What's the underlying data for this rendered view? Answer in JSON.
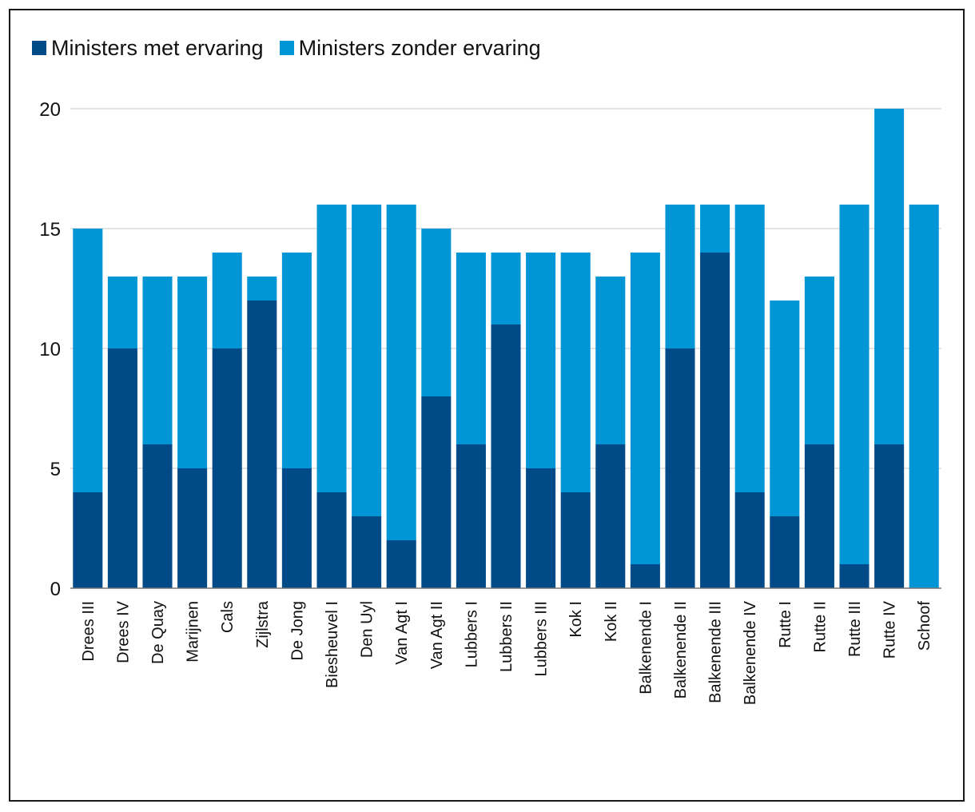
{
  "chart_data": {
    "type": "bar",
    "stacked": true,
    "title": "",
    "xlabel": "",
    "ylabel": "",
    "ylim": [
      0,
      20
    ],
    "yticks": [
      0,
      5,
      10,
      15,
      20
    ],
    "grid": true,
    "legend_position": "top-left",
    "categories": [
      "Drees III",
      "Drees IV",
      "De Quay",
      "Marijnen",
      "Cals",
      "Zijlstra",
      "De Jong",
      "Biesheuvel I",
      "Den Uyl",
      "Van Agt I",
      "Van Agt II",
      "Lubbers I",
      "Lubbers II",
      "Lubbers III",
      "Kok I",
      "Kok II",
      "Balkenende I",
      "Balkenende II",
      "Balkenende III",
      "Balkenende IV",
      "Rutte I",
      "Rutte II",
      "Rutte III",
      "Rutte IV",
      "Schoof"
    ],
    "series": [
      {
        "name": "Ministers met ervaring",
        "color": "#004b87",
        "values": [
          4,
          10,
          6,
          5,
          10,
          12,
          5,
          4,
          3,
          2,
          8,
          6,
          11,
          5,
          4,
          6,
          1,
          10,
          14,
          4,
          3,
          6,
          1,
          6,
          0
        ]
      },
      {
        "name": "Ministers zonder ervaring",
        "color": "#0096d6",
        "values": [
          11,
          3,
          7,
          8,
          4,
          1,
          9,
          12,
          13,
          14,
          7,
          8,
          3,
          9,
          10,
          7,
          13,
          6,
          2,
          12,
          9,
          7,
          15,
          14,
          16
        ]
      }
    ]
  }
}
